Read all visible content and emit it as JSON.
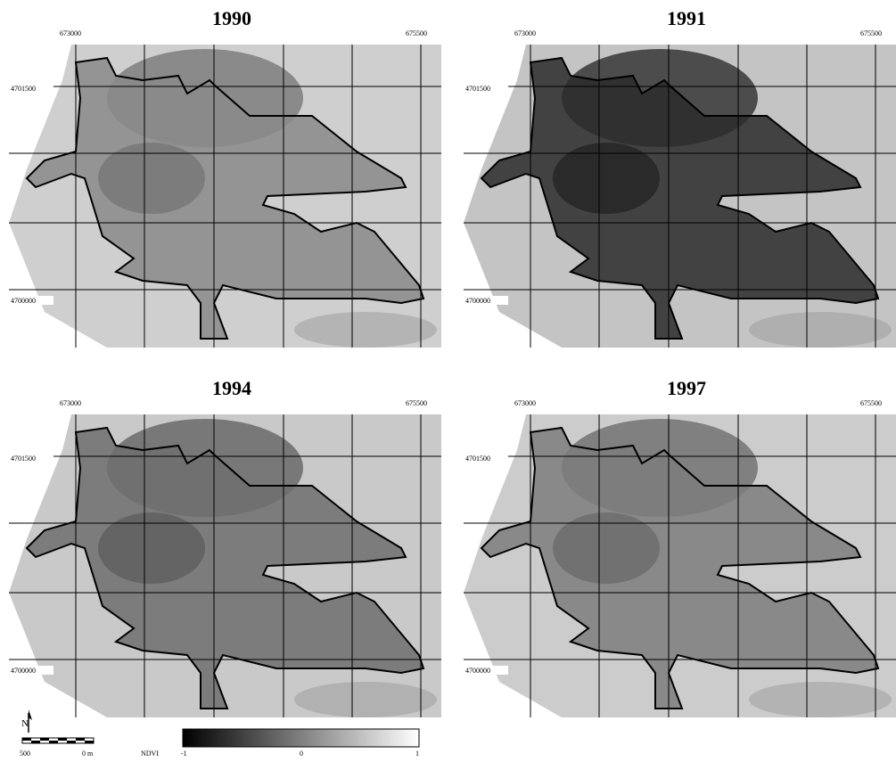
{
  "panels": [
    {
      "title": "1990",
      "x_labels": [
        "673000",
        "675500"
      ],
      "y_labels": [
        "4701500",
        "4700000"
      ]
    },
    {
      "title": "1991",
      "x_labels": [
        "673000",
        "675500"
      ],
      "y_labels": [
        "4701500",
        "4700000"
      ]
    },
    {
      "title": "1994",
      "x_labels": [
        "673000",
        "675500"
      ],
      "y_labels": [
        "4701500",
        "4700000"
      ]
    },
    {
      "title": "1997",
      "x_labels": [
        "673000",
        "675500"
      ],
      "y_labels": [
        "4701500",
        "4700000"
      ]
    }
  ],
  "scale_bar": {
    "north": "N",
    "labels": [
      "500",
      "0 m"
    ]
  },
  "legend": {
    "title": "NDVI",
    "labels": [
      "-1",
      "0",
      "1"
    ]
  }
}
